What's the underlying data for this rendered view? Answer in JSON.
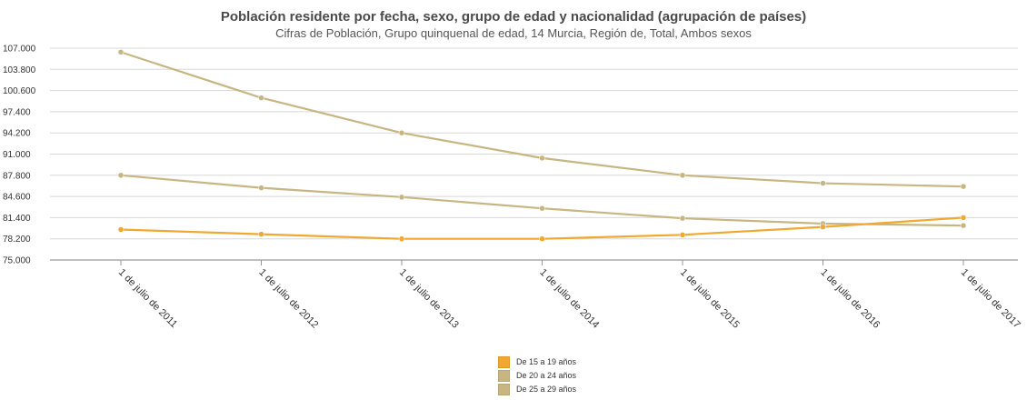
{
  "chart_data": {
    "type": "line",
    "title": "Población residente por fecha, sexo, grupo de edad y nacionalidad (agrupación de países)",
    "subtitle": "Cifras de Población, Grupo quinquenal de edad, 14 Murcia, Región de, Total, Ambos sexos",
    "categories": [
      "1 de julio de 2011",
      "1 de julio de 2012",
      "1 de julio de 2013",
      "1 de julio de 2014",
      "1 de julio de 2015",
      "1 de julio de 2016",
      "1 de julio de 2017"
    ],
    "y_ticks": [
      "107.000",
      "103.800",
      "100.600",
      "97.400",
      "94.200",
      "91.000",
      "87.800",
      "84.600",
      "81.400",
      "78.200",
      "75.000"
    ],
    "ylim": [
      75000,
      107000
    ],
    "grid": true,
    "legend_position": "bottom",
    "series": [
      {
        "name": "De 15 a 19 años",
        "color": "#f0a830",
        "values": [
          79600,
          78900,
          78200,
          78200,
          78800,
          80000,
          81400
        ]
      },
      {
        "name": "De 20 a 24 años",
        "color": "#c8b682",
        "values": [
          87800,
          85900,
          84500,
          82800,
          81300,
          80500,
          80200
        ]
      },
      {
        "name": "De 25 a 29 años",
        "color": "#c8b682",
        "values": [
          106400,
          99500,
          94200,
          90400,
          87800,
          86600,
          86100
        ]
      }
    ]
  }
}
